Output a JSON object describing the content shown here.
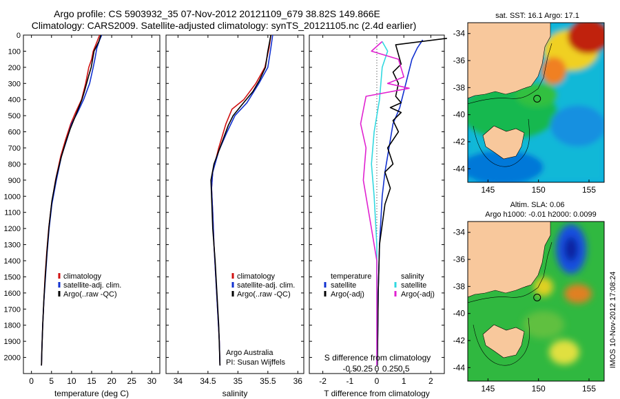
{
  "header": {
    "line1": "Argo profile: CS 5903932_35 07-Nov-2012 20121109_679 38.82S 149.866E",
    "line2": "Climatology: CARS2009. Satellite-adjusted climatology: synTS_20121105.nc (2.4d earlier)"
  },
  "credit": "IMOS 10-Nov-2012 17:08:24",
  "colors": {
    "climatology": "#d01010",
    "satellite": "#1030d0",
    "argo": "#000000",
    "sal_satellite": "#30d8e0",
    "sal_argo": "#e020d0",
    "land": "#f8c89c"
  },
  "chart_data": [
    {
      "type": "line",
      "xlabel": "temperature (deg C)",
      "ylim": [
        2100,
        0
      ],
      "xlim": [
        -2,
        32
      ],
      "xticks": [
        0,
        5,
        10,
        15,
        20,
        25,
        30
      ],
      "yticks": [
        0,
        100,
        200,
        300,
        400,
        500,
        600,
        700,
        800,
        900,
        1000,
        1100,
        1200,
        1300,
        1400,
        1500,
        1600,
        1700,
        1800,
        1900,
        2000
      ],
      "legend": [
        "climatology",
        "satellite-adj. clim.",
        "Argo(..raw -QC)"
      ],
      "series": [
        {
          "name": "climatology",
          "points": [
            [
              17.0,
              0
            ],
            [
              16.2,
              50
            ],
            [
              15.4,
              100
            ],
            [
              15.0,
              150
            ],
            [
              14.3,
              200
            ],
            [
              13.5,
              300
            ],
            [
              12.5,
              400
            ],
            [
              11.0,
              480
            ],
            [
              9.8,
              550
            ],
            [
              8.5,
              650
            ],
            [
              7.3,
              750
            ],
            [
              6.0,
              900
            ],
            [
              5.0,
              1050
            ],
            [
              4.3,
              1200
            ],
            [
              3.8,
              1350
            ],
            [
              3.4,
              1500
            ],
            [
              3.1,
              1650
            ],
            [
              2.8,
              1800
            ],
            [
              2.6,
              1950
            ],
            [
              2.5,
              2050
            ]
          ]
        },
        {
          "name": "satellite-adj. clim.",
          "points": [
            [
              17.5,
              0
            ],
            [
              17.0,
              30
            ],
            [
              16.3,
              80
            ],
            [
              15.8,
              150
            ],
            [
              15.4,
              200
            ],
            [
              14.5,
              300
            ],
            [
              13.0,
              400
            ],
            [
              11.5,
              480
            ],
            [
              10.0,
              550
            ],
            [
              8.8,
              650
            ],
            [
              7.5,
              750
            ],
            [
              6.2,
              900
            ],
            [
              5.1,
              1050
            ],
            [
              4.4,
              1200
            ],
            [
              3.9,
              1350
            ],
            [
              3.5,
              1500
            ],
            [
              3.1,
              1650
            ],
            [
              2.8,
              1800
            ],
            [
              2.6,
              1950
            ],
            [
              2.5,
              2050
            ]
          ]
        },
        {
          "name": "Argo(..raw -QC)",
          "points": [
            [
              17.3,
              0
            ],
            [
              16.8,
              40
            ],
            [
              15.6,
              100
            ],
            [
              14.9,
              200
            ],
            [
              14.3,
              250
            ],
            [
              13.2,
              350
            ],
            [
              12.6,
              400
            ],
            [
              11.0,
              500
            ],
            [
              9.7,
              580
            ],
            [
              8.6,
              660
            ],
            [
              7.4,
              760
            ],
            [
              6.2,
              880
            ],
            [
              5.1,
              1030
            ],
            [
              4.4,
              1180
            ],
            [
              3.9,
              1330
            ],
            [
              3.5,
              1480
            ],
            [
              3.1,
              1640
            ],
            [
              2.8,
              1800
            ],
            [
              2.6,
              1950
            ],
            [
              2.5,
              2050
            ]
          ]
        }
      ]
    },
    {
      "type": "line",
      "xlabel": "salinity",
      "ylim": [
        2100,
        0
      ],
      "xlim": [
        33.8,
        36.1
      ],
      "xticks": [
        34,
        34.5,
        35,
        35.5,
        36
      ],
      "xticklabels": [
        "34",
        "34.5",
        "35",
        "35.5",
        "36"
      ],
      "legend": [
        "climatology",
        "satellite-adj. clim.",
        "Argo(..raw -QC)"
      ],
      "annotations": [
        "Argo Australia",
        "PI: Susan Wijffels"
      ],
      "series": [
        {
          "name": "climatology",
          "points": [
            [
              35.55,
              0
            ],
            [
              35.52,
              80
            ],
            [
              35.45,
              200
            ],
            [
              35.3,
              300
            ],
            [
              35.1,
              400
            ],
            [
              34.9,
              460
            ],
            [
              34.8,
              550
            ],
            [
              34.68,
              700
            ],
            [
              34.58,
              850
            ],
            [
              34.56,
              950
            ],
            [
              34.58,
              1100
            ],
            [
              34.6,
              1300
            ],
            [
              34.63,
              1500
            ],
            [
              34.66,
              1700
            ],
            [
              34.69,
              1900
            ],
            [
              34.7,
              2050
            ]
          ]
        },
        {
          "name": "satellite-adj. clim.",
          "points": [
            [
              35.58,
              0
            ],
            [
              35.55,
              80
            ],
            [
              35.5,
              200
            ],
            [
              35.35,
              300
            ],
            [
              35.15,
              420
            ],
            [
              34.95,
              500
            ],
            [
              34.82,
              600
            ],
            [
              34.68,
              720
            ],
            [
              34.58,
              850
            ],
            [
              34.56,
              950
            ],
            [
              34.58,
              1100
            ],
            [
              34.6,
              1300
            ],
            [
              34.63,
              1500
            ],
            [
              34.66,
              1700
            ],
            [
              34.69,
              1900
            ],
            [
              34.7,
              2050
            ]
          ]
        },
        {
          "name": "Argo(..raw -QC)",
          "points": [
            [
              35.55,
              0
            ],
            [
              35.5,
              100
            ],
            [
              35.46,
              200
            ],
            [
              35.36,
              280
            ],
            [
              35.25,
              350
            ],
            [
              35.05,
              440
            ],
            [
              34.92,
              500
            ],
            [
              34.84,
              560
            ],
            [
              34.72,
              680
            ],
            [
              34.6,
              800
            ],
            [
              34.55,
              900
            ],
            [
              34.56,
              1000
            ],
            [
              34.58,
              1200
            ],
            [
              34.62,
              1400
            ],
            [
              34.65,
              1600
            ],
            [
              34.68,
              1800
            ],
            [
              34.7,
              2050
            ]
          ]
        }
      ]
    },
    {
      "type": "line",
      "xlabel": "T difference from climatology",
      "top_label": "S difference from climatology",
      "ylim": [
        2100,
        0
      ],
      "xlim": [
        -2.5,
        2.5
      ],
      "xticks": [
        -2,
        -1,
        0,
        1,
        2
      ],
      "xticklabels": [
        "-2",
        "-1",
        "0",
        "1",
        "2"
      ],
      "sticks": [
        -1,
        -0.5,
        0,
        0.5,
        1
      ],
      "sticklabels": [
        "-0.5",
        "-0.25",
        "0",
        "0.25",
        "0.5"
      ],
      "legend": {
        "temperature_header": "temperature",
        "salinity_header": "salinity",
        "temperature": [
          "satellite",
          "Argo(-adj)"
        ],
        "salinity": [
          "satellite",
          "Argo(-adj)"
        ]
      },
      "series": [
        {
          "name": "satellite",
          "points": [
            [
              1.7,
              30
            ],
            [
              1.5,
              80
            ],
            [
              1.3,
              150
            ],
            [
              1.15,
              250
            ],
            [
              1.0,
              350
            ],
            [
              0.85,
              450
            ],
            [
              0.6,
              550
            ],
            [
              0.5,
              650
            ],
            [
              0.4,
              750
            ],
            [
              0.3,
              850
            ],
            [
              0.2,
              1000
            ],
            [
              0.1,
              1300
            ],
            [
              0.05,
              1600
            ],
            [
              0.02,
              2050
            ]
          ]
        },
        {
          "name": "Argo(-adj)",
          "points": [
            [
              2.6,
              20
            ],
            [
              0.7,
              60
            ],
            [
              0.9,
              180
            ],
            [
              0.6,
              230
            ],
            [
              0.8,
              300
            ],
            [
              0.7,
              380
            ],
            [
              0.9,
              420
            ],
            [
              0.5,
              450
            ],
            [
              0.9,
              480
            ],
            [
              0.6,
              530
            ],
            [
              0.8,
              600
            ],
            [
              0.4,
              700
            ],
            [
              0.6,
              800
            ],
            [
              0.3,
              850
            ],
            [
              0.5,
              950
            ],
            [
              0.3,
              1050
            ],
            [
              0.1,
              1300
            ],
            [
              0.05,
              1600
            ],
            [
              0.02,
              2050
            ]
          ]
        },
        {
          "name": "sal satellite",
          "points": [
            [
              0.1,
              40
            ],
            [
              0.2,
              100
            ],
            [
              0.1,
              200
            ],
            [
              0.05,
              400
            ],
            [
              -0.05,
              600
            ],
            [
              -0.1,
              800
            ],
            [
              -0.05,
              1000
            ],
            [
              0.0,
              1300
            ],
            [
              0.0,
              1600
            ],
            [
              0.0,
              2050
            ]
          ]
        },
        {
          "name": "sal Argo(-adj)",
          "points": [
            [
              0.1,
              40
            ],
            [
              -0.1,
              100
            ],
            [
              0.4,
              150
            ],
            [
              0.5,
              260
            ],
            [
              0.2,
              300
            ],
            [
              0.6,
              330
            ],
            [
              -0.2,
              380
            ],
            [
              -0.3,
              550
            ],
            [
              -0.2,
              700
            ],
            [
              -0.25,
              900
            ],
            [
              -0.2,
              1000
            ],
            [
              -0.1,
              1200
            ],
            [
              0.0,
              1400
            ],
            [
              0.0,
              1600
            ],
            [
              0.0,
              2050
            ]
          ]
        }
      ]
    },
    {
      "type": "heatmap",
      "title": "sat. SST: 16.1 Argo: 17.1",
      "xlim": [
        143,
        156.5
      ],
      "ylim": [
        -45,
        -33.2
      ],
      "xticks": [
        145,
        150,
        155
      ],
      "yticks": [
        -34,
        -36,
        -38,
        -40,
        -42,
        -44
      ],
      "float_position": [
        149.866,
        -38.82
      ]
    },
    {
      "type": "heatmap",
      "title_line1": "Altim. SLA: 0.06",
      "title_line2": "Argo h1000: -0.01 h2000: 0.0099",
      "xlim": [
        143,
        156.5
      ],
      "ylim": [
        -45,
        -33.2
      ],
      "xticks": [
        145,
        150,
        155
      ],
      "yticks": [
        -34,
        -36,
        -38,
        -40,
        -42,
        -44
      ],
      "float_position": [
        149.866,
        -38.82
      ]
    }
  ]
}
